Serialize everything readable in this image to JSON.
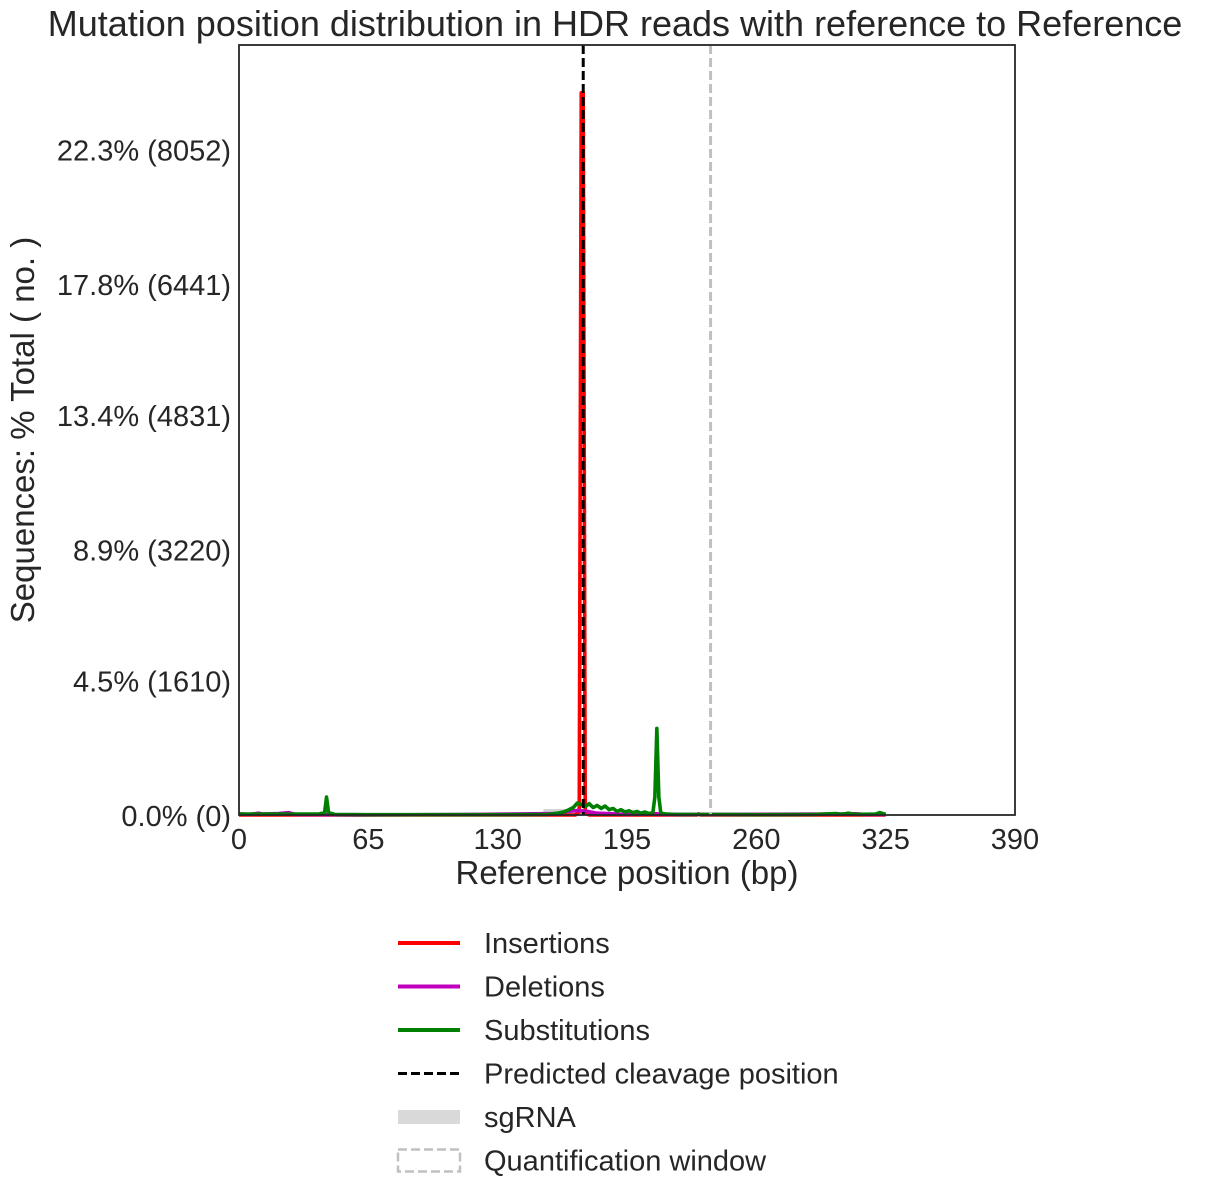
{
  "chart_data": {
    "type": "line",
    "title": "Mutation position distribution in HDR reads with reference to Reference",
    "xlabel": "Reference position (bp)",
    "ylabel": "Sequences: % Total ( no. )",
    "xlim": [
      0,
      390
    ],
    "ylim": [
      0,
      25.8
    ],
    "x_ticks": [
      0,
      65,
      130,
      195,
      260,
      325,
      390
    ],
    "x_tick_labels": [
      "0",
      "65",
      "130",
      "195",
      "260",
      "325",
      "390"
    ],
    "y_ticks": [
      0,
      4.5,
      8.9,
      13.4,
      17.8,
      22.3
    ],
    "y_tick_labels": [
      "0.0% (0)",
      "4.5% (1610)",
      "8.9% (3220)",
      "13.4% (4831)",
      "17.8% (6441)",
      "22.3% (8052)"
    ],
    "grid": false,
    "legend_placement": "below",
    "series": [
      {
        "name": "Insertions",
        "color": "#ff0000",
        "points": [
          [
            0,
            0
          ],
          [
            169,
            0
          ],
          [
            170,
            0.05
          ],
          [
            171,
            0.1
          ],
          [
            172,
            24.2
          ],
          [
            173,
            24.2
          ],
          [
            174,
            0.1
          ],
          [
            175,
            0.05
          ],
          [
            176,
            0
          ],
          [
            230,
            0
          ],
          [
            231,
            0.04
          ],
          [
            232,
            0
          ],
          [
            325,
            0
          ]
        ]
      },
      {
        "name": "Deletions",
        "color": "#bf00bf",
        "points": [
          [
            0,
            0.04
          ],
          [
            5,
            0.02
          ],
          [
            10,
            0.06
          ],
          [
            12,
            0.03
          ],
          [
            20,
            0.05
          ],
          [
            25,
            0.08
          ],
          [
            28,
            0.02
          ],
          [
            60,
            0
          ],
          [
            120,
            0.02
          ],
          [
            160,
            0.05
          ],
          [
            165,
            0.12
          ],
          [
            170,
            0.15
          ],
          [
            175,
            0.12
          ],
          [
            180,
            0.06
          ],
          [
            185,
            0.05
          ],
          [
            190,
            0.03
          ],
          [
            195,
            0.02
          ],
          [
            200,
            0.03
          ],
          [
            210,
            0.04
          ],
          [
            215,
            0.02
          ],
          [
            240,
            0.02
          ],
          [
            300,
            0.03
          ],
          [
            310,
            0.04
          ],
          [
            315,
            0.02
          ],
          [
            325,
            0.02
          ]
        ]
      },
      {
        "name": "Substitutions",
        "color": "#008000",
        "points": [
          [
            0,
            0.03
          ],
          [
            40,
            0.03
          ],
          [
            43,
            0.08
          ],
          [
            44,
            0.6
          ],
          [
            45,
            0.08
          ],
          [
            48,
            0.02
          ],
          [
            65,
            0.01
          ],
          [
            130,
            0.01
          ],
          [
            155,
            0.02
          ],
          [
            160,
            0.06
          ],
          [
            163,
            0.1
          ],
          [
            165,
            0.15
          ],
          [
            168,
            0.25
          ],
          [
            170,
            0.4
          ],
          [
            172,
            0.35
          ],
          [
            174,
            0.28
          ],
          [
            176,
            0.38
          ],
          [
            178,
            0.25
          ],
          [
            180,
            0.32
          ],
          [
            182,
            0.22
          ],
          [
            184,
            0.3
          ],
          [
            186,
            0.18
          ],
          [
            188,
            0.22
          ],
          [
            190,
            0.12
          ],
          [
            192,
            0.18
          ],
          [
            194,
            0.1
          ],
          [
            196,
            0.14
          ],
          [
            198,
            0.08
          ],
          [
            200,
            0.12
          ],
          [
            202,
            0.06
          ],
          [
            204,
            0.1
          ],
          [
            206,
            0.05
          ],
          [
            208,
            0.08
          ],
          [
            209,
            0.6
          ],
          [
            210,
            2.9
          ],
          [
            211,
            0.6
          ],
          [
            212,
            0.06
          ],
          [
            215,
            0.03
          ],
          [
            220,
            0.02
          ],
          [
            240,
            0.02
          ],
          [
            260,
            0.01
          ],
          [
            290,
            0.02
          ],
          [
            300,
            0.05
          ],
          [
            303,
            0.02
          ],
          [
            306,
            0.06
          ],
          [
            310,
            0.02
          ],
          [
            320,
            0.03
          ],
          [
            322,
            0.08
          ],
          [
            325,
            0.02
          ]
        ]
      }
    ],
    "annotations": [
      {
        "type": "vline",
        "name": "Predicted cleavage position",
        "x": 173,
        "color": "#000000",
        "style": "dashed"
      },
      {
        "type": "vband",
        "name": "sgRNA",
        "x_range": [
          153,
          173
        ],
        "color": "#d3d3d3"
      },
      {
        "type": "vline",
        "name": "Quantification window",
        "x": 237,
        "color": "#c0c0c0",
        "style": "dashed"
      }
    ],
    "legend": [
      {
        "label": "Insertions",
        "kind": "line",
        "color": "#ff0000"
      },
      {
        "label": "Deletions",
        "kind": "line",
        "color": "#bf00bf"
      },
      {
        "label": "Substitutions",
        "kind": "line",
        "color": "#008000"
      },
      {
        "label": "Predicted cleavage position",
        "kind": "dashed-line",
        "color": "#000000"
      },
      {
        "label": "sgRNA",
        "kind": "band",
        "color": "#d9d9d9"
      },
      {
        "label": "Quantification window",
        "kind": "dashed-box",
        "color": "#c0c0c0"
      }
    ]
  }
}
